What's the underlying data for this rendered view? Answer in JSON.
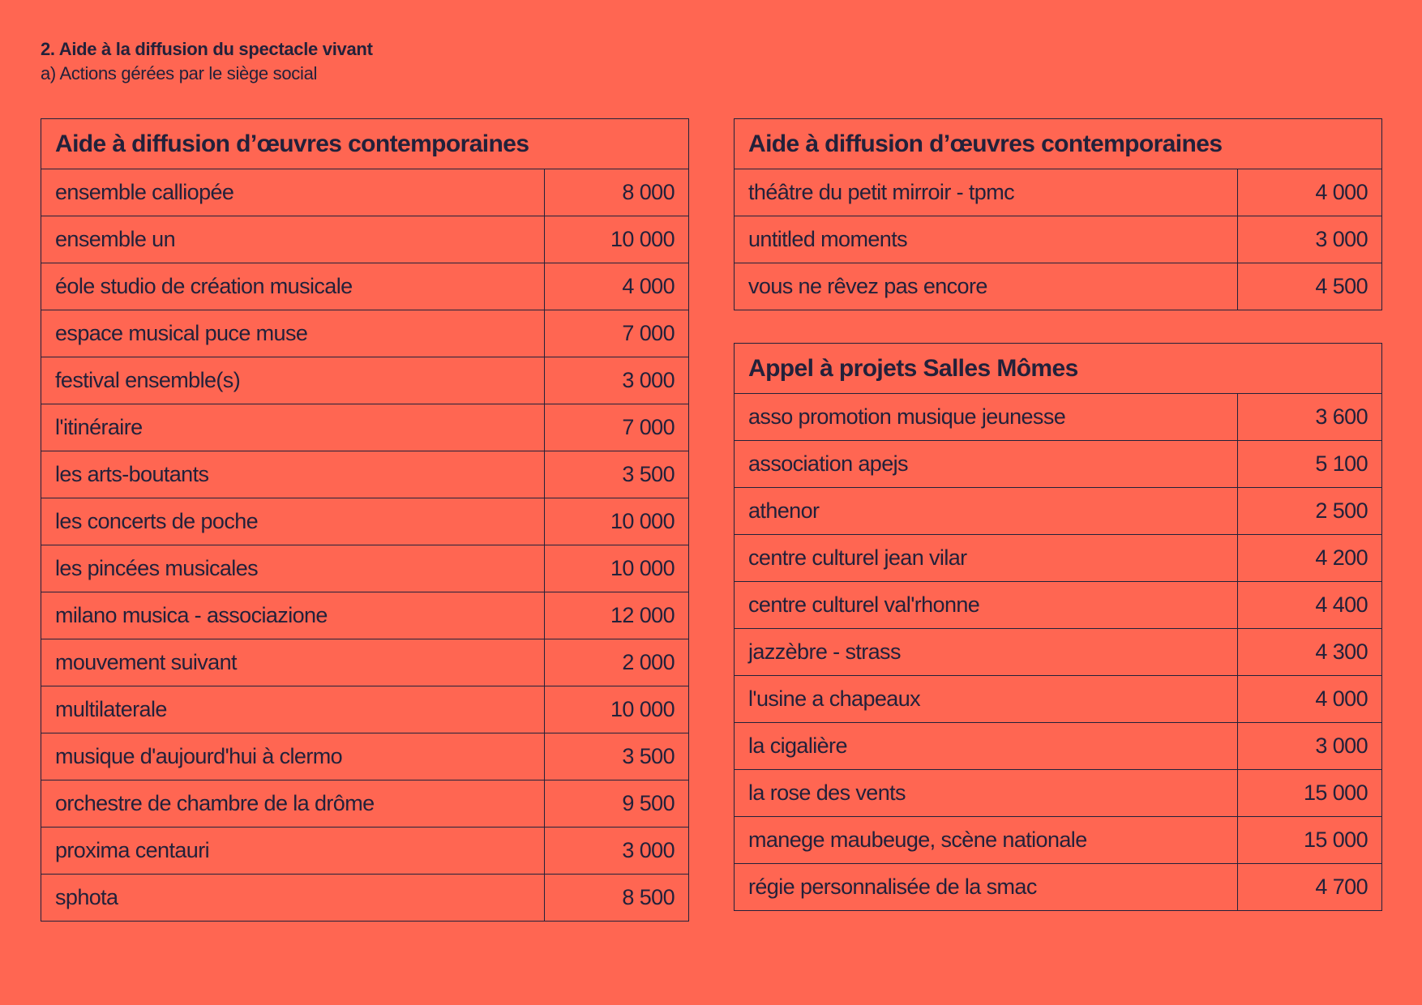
{
  "header": {
    "title": "2. Aide à la diffusion du spectacle vivant",
    "subtitle": "a) Actions gérées par le siège social"
  },
  "tables": [
    {
      "title": "Aide à diffusion d’œuvres contemporaines",
      "rows": [
        {
          "name": "ensemble calliopée",
          "amount": "8 000"
        },
        {
          "name": "ensemble un",
          "amount": "10 000"
        },
        {
          "name": "éole studio de création musicale",
          "amount": "4 000"
        },
        {
          "name": "espace musical puce muse",
          "amount": "7 000"
        },
        {
          "name": "festival ensemble(s)",
          "amount": "3 000"
        },
        {
          "name": "l'itinéraire",
          "amount": "7 000"
        },
        {
          "name": "les arts-boutants",
          "amount": "3 500"
        },
        {
          "name": "les concerts de poche",
          "amount": "10 000"
        },
        {
          "name": "les pincées musicales",
          "amount": "10 000"
        },
        {
          "name": "milano musica - associazione",
          "amount": "12 000"
        },
        {
          "name": "mouvement suivant",
          "amount": "2 000"
        },
        {
          "name": "multilaterale",
          "amount": "10 000"
        },
        {
          "name": "musique d'aujourd'hui à clermo",
          "amount": "3 500"
        },
        {
          "name": "orchestre de chambre de la drôme",
          "amount": "9 500"
        },
        {
          "name": "proxima centauri",
          "amount": "3 000"
        },
        {
          "name": "sphota",
          "amount": "8 500"
        }
      ]
    },
    {
      "title": "Aide à diffusion d’œuvres contemporaines",
      "rows": [
        {
          "name": "théâtre du petit mirroir - tpmc",
          "amount": "4 000"
        },
        {
          "name": "untitled moments",
          "amount": "3 000"
        },
        {
          "name": "vous ne rêvez pas encore",
          "amount": "4 500"
        }
      ]
    },
    {
      "title": "Appel à projets Salles Mômes",
      "rows": [
        {
          "name": "asso promotion musique jeunesse",
          "amount": "3 600"
        },
        {
          "name": "association apejs",
          "amount": "5 100"
        },
        {
          "name": "athenor",
          "amount": "2 500"
        },
        {
          "name": "centre culturel jean vilar",
          "amount": "4 200"
        },
        {
          "name": "centre culturel val'rhonne",
          "amount": "4 400"
        },
        {
          "name": "jazzèbre - strass",
          "amount": "4 300"
        },
        {
          "name": "l'usine a chapeaux",
          "amount": "4 000"
        },
        {
          "name": "la cigalière",
          "amount": "3 000"
        },
        {
          "name": "la rose des vents",
          "amount": "15 000"
        },
        {
          "name": "manege maubeuge, scène nationale",
          "amount": "15 000"
        },
        {
          "name": "régie personnalisée de la smac",
          "amount": "4 700"
        }
      ]
    }
  ]
}
